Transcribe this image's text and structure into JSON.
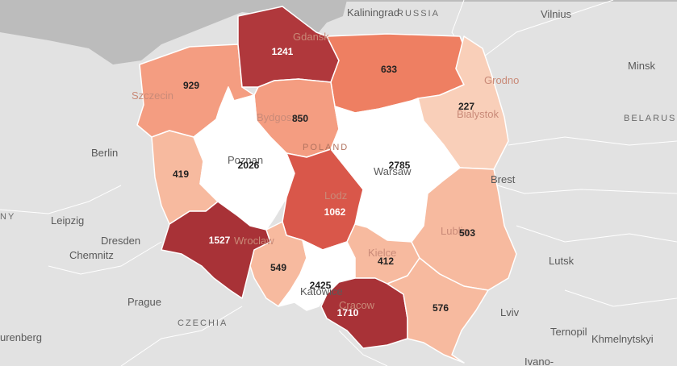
{
  "map": {
    "colors": {
      "sea": "#bcbcbc",
      "land": "#e2e2e2",
      "white": "#ffffff",
      "darkest": "#a83237",
      "dark": "#b0383c",
      "medium_dark": "#d9574a",
      "orange": "#ee7f62",
      "medium": "#f49d81",
      "light": "#f7ba9f",
      "lightest": "#f9cfb9"
    },
    "regions": [
      {
        "id": "pomorskie",
        "value": "1241"
      },
      {
        "id": "zachodniopomorskie",
        "value": "929"
      },
      {
        "id": "warminsko-mazurskie",
        "value": "633"
      },
      {
        "id": "podlaskie",
        "value": "227"
      },
      {
        "id": "kujawsko-pomorskie",
        "value": "850"
      },
      {
        "id": "wielkopolskie",
        "value": "2026"
      },
      {
        "id": "mazowieckie",
        "value": "2785"
      },
      {
        "id": "lubuskie",
        "value": "419"
      },
      {
        "id": "lodzkie",
        "value": "1062"
      },
      {
        "id": "dolnoslaskie",
        "value": "1527"
      },
      {
        "id": "opolskie",
        "value": "549"
      },
      {
        "id": "slaskie",
        "value": "2425"
      },
      {
        "id": "swietokrzyskie",
        "value": "412"
      },
      {
        "id": "lubelskie",
        "value": "503"
      },
      {
        "id": "malopolskie",
        "value": "1710"
      },
      {
        "id": "podkarpackie",
        "value": "576"
      }
    ],
    "cities": [
      {
        "name": "Kaliningrad"
      },
      {
        "name": "Vilnius"
      },
      {
        "name": "Minsk"
      },
      {
        "name": "Grodno"
      },
      {
        "name": "Berlin"
      },
      {
        "name": "Leipzig"
      },
      {
        "name": "Dresden"
      },
      {
        "name": "Chemnitz"
      },
      {
        "name": "Prague"
      },
      {
        "name": "urenberg"
      },
      {
        "name": "Lutsk"
      },
      {
        "name": "Lviv"
      },
      {
        "name": "Ternopil"
      },
      {
        "name": "Khmelnytskyi"
      },
      {
        "name": "Ivano-"
      },
      {
        "name": "Brest"
      },
      {
        "name": "Gdansk"
      },
      {
        "name": "Szczecin"
      },
      {
        "name": "Bydgoszcz"
      },
      {
        "name": "Bialystok"
      },
      {
        "name": "Poznan"
      },
      {
        "name": "Warsaw"
      },
      {
        "name": "Lodz"
      },
      {
        "name": "Wroclaw"
      },
      {
        "name": "Lublin"
      },
      {
        "name": "Kielce"
      },
      {
        "name": "Katowice"
      },
      {
        "name": "Cracow"
      }
    ],
    "countries": [
      {
        "name": "RUSSIA"
      },
      {
        "name": "BELARUS"
      },
      {
        "name": "POLAND"
      },
      {
        "name": "CZECHIA"
      },
      {
        "name": "NY"
      }
    ]
  }
}
